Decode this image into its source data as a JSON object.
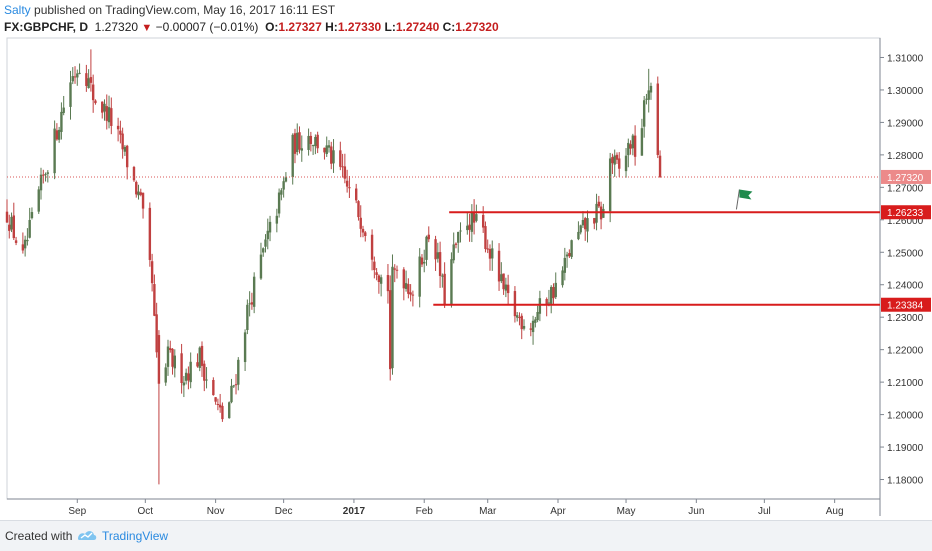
{
  "header": {
    "author": "Salty",
    "published_text": "published on TradingView.com, May 16, 2017 16:11 EST"
  },
  "ohlc": {
    "symbol": "FX:GBPCHF, D",
    "last": "1.27320",
    "change": "−0.00007 (−0.01%)",
    "o_label": "O:",
    "o": "1.27327",
    "h_label": "H:",
    "h": "1.27330",
    "l_label": "L:",
    "l": "1.27240",
    "c_label": "C:",
    "c": "1.27320"
  },
  "footer": {
    "created_with": "Created with",
    "brand": "TradingView"
  },
  "colors": {
    "up_candle": "#5a7a52",
    "down_candle": "#c04040",
    "level_line": "#d81c1c",
    "price_line": "#d95555",
    "flag": "#1f8a4c",
    "brand_blue": "#2a8ae0"
  },
  "icons": {
    "flag": "flag-icon",
    "logo": "tradingview-logo-icon"
  },
  "chart_data": {
    "type": "candlestick",
    "symbol": "FX:GBPCHF",
    "timeframe": "D",
    "ylim": [
      1.174,
      1.316
    ],
    "y_ticks": [
      "1.31000",
      "1.30000",
      "1.29000",
      "1.28000",
      "1.27000",
      "1.26000",
      "1.25000",
      "1.24000",
      "1.23000",
      "1.22000",
      "1.21000",
      "1.20000",
      "1.19000",
      "1.18000"
    ],
    "x_ticks": [
      "Sep",
      "Oct",
      "Nov",
      "Dec",
      "2017",
      "Feb",
      "Mar",
      "Apr",
      "May",
      "Jun",
      "Jul",
      "Aug"
    ],
    "x_tick_dates": [
      "2016-09-01",
      "2016-10-01",
      "2016-11-01",
      "2016-12-01",
      "2017-01-01",
      "2017-02-01",
      "2017-03-01",
      "2017-04-01",
      "2017-05-01",
      "2017-06-01",
      "2017-07-01",
      "2017-08-01"
    ],
    "x_range": [
      "2016-08-01",
      "2017-08-21"
    ],
    "current_price": {
      "value": 1.2732,
      "label": "1.27320"
    },
    "levels": [
      {
        "value": 1.26233,
        "label": "1.26233",
        "from": "2017-02-12"
      },
      {
        "value": 1.23384,
        "label": "1.23384",
        "from": "2017-02-05"
      }
    ],
    "flag_marker": {
      "date": "2017-06-20",
      "value": 1.2675
    },
    "anchors": [
      [
        "2016-08-01",
        1.262
      ],
      [
        "2016-08-08",
        1.248
      ],
      [
        "2016-08-15",
        1.268
      ],
      [
        "2016-08-22",
        1.285
      ],
      [
        "2016-08-29",
        1.303
      ],
      [
        "2016-09-03",
        1.309
      ],
      [
        "2016-09-08",
        1.298
      ],
      [
        "2016-09-15",
        1.292
      ],
      [
        "2016-09-22",
        1.28
      ],
      [
        "2016-09-29",
        1.265
      ],
      [
        "2016-10-04",
        1.24
      ],
      [
        "2016-10-07",
        1.205
      ],
      [
        "2016-10-11",
        1.218
      ],
      [
        "2016-10-18",
        1.212
      ],
      [
        "2016-10-25",
        1.218
      ],
      [
        "2016-11-01",
        1.203
      ],
      [
        "2016-11-05",
        1.198
      ],
      [
        "2016-11-10",
        1.212
      ],
      [
        "2016-11-15",
        1.232
      ],
      [
        "2016-11-22",
        1.25
      ],
      [
        "2016-11-30",
        1.268
      ],
      [
        "2016-12-05",
        1.283
      ],
      [
        "2016-12-12",
        1.286
      ],
      [
        "2016-12-19",
        1.282
      ],
      [
        "2016-12-26",
        1.275
      ],
      [
        "2017-01-01",
        1.265
      ],
      [
        "2017-01-07",
        1.256
      ],
      [
        "2017-01-10",
        1.248
      ],
      [
        "2017-01-15",
        1.238
      ],
      [
        "2017-01-20",
        1.245
      ],
      [
        "2017-01-27",
        1.238
      ],
      [
        "2017-01-31",
        1.248
      ],
      [
        "2017-02-04",
        1.258
      ],
      [
        "2017-02-10",
        1.236
      ],
      [
        "2017-02-14",
        1.25
      ],
      [
        "2017-02-20",
        1.26
      ],
      [
        "2017-02-26",
        1.258
      ],
      [
        "2017-03-02",
        1.25
      ],
      [
        "2017-03-08",
        1.238
      ],
      [
        "2017-03-14",
        1.23
      ],
      [
        "2017-03-20",
        1.228
      ],
      [
        "2017-03-26",
        1.235
      ],
      [
        "2017-04-01",
        1.24
      ],
      [
        "2017-04-07",
        1.252
      ],
      [
        "2017-04-13",
        1.258
      ],
      [
        "2017-04-18",
        1.262
      ],
      [
        "2017-04-21",
        1.262
      ],
      [
        "2017-04-24",
        1.279
      ],
      [
        "2017-04-28",
        1.275
      ],
      [
        "2017-05-03",
        1.284
      ],
      [
        "2017-05-06",
        1.28
      ],
      [
        "2017-05-09",
        1.294
      ],
      [
        "2017-05-11",
        1.302
      ],
      [
        "2017-05-13",
        1.295
      ],
      [
        "2017-05-15",
        1.281
      ],
      [
        "2017-05-16",
        1.2732
      ]
    ]
  }
}
